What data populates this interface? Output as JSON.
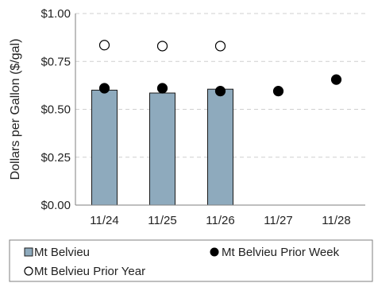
{
  "chart_data": {
    "type": "bar",
    "categories": [
      "11/24",
      "11/25",
      "11/26",
      "11/27",
      "11/28"
    ],
    "ylabel": "Dollars per Gallon ($/gal)",
    "ylim": [
      0,
      1.0
    ],
    "yticks": [
      {
        "value": 0.0,
        "label": "$0.00"
      },
      {
        "value": 0.25,
        "label": "$0.25"
      },
      {
        "value": 0.5,
        "label": "$0.50"
      },
      {
        "value": 0.75,
        "label": "$0.75"
      },
      {
        "value": 1.0,
        "label": "$1.00"
      }
    ],
    "grid": true,
    "legend": "bottom",
    "series": [
      {
        "name": "Mt Belvieu",
        "kind": "bar",
        "color": "#8eaabd",
        "values": [
          0.6,
          0.585,
          0.605,
          null,
          null
        ]
      },
      {
        "name": "Mt Belvieu Prior Week",
        "kind": "scatter",
        "marker": "filled-circle",
        "color": "#000000",
        "values": [
          0.61,
          0.61,
          0.595,
          0.595,
          0.655
        ]
      },
      {
        "name": "Mt Belvieu Prior Year",
        "kind": "scatter",
        "marker": "hollow-circle",
        "color": "#000000",
        "values": [
          0.835,
          0.83,
          0.83,
          null,
          null
        ]
      }
    ]
  }
}
